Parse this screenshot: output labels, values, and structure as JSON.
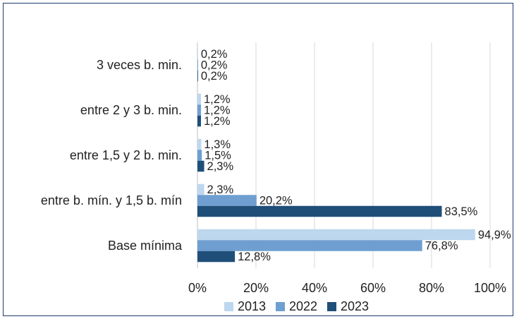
{
  "chart_data": {
    "type": "bar",
    "orientation": "horizontal",
    "categories": [
      "3 veces b. min.",
      "entre 2 y 3 b. min.",
      "entre 1,5 y 2 b. min.",
      "entre b. mín. y 1,5 b. mín",
      "Base mínima"
    ],
    "series": [
      {
        "name": "2013",
        "color": "#bdd7ee",
        "values": [
          0.2,
          1.2,
          1.3,
          2.3,
          94.9
        ],
        "labels": [
          "0,2%",
          "1,2%",
          "1,3%",
          "2,3%",
          "94,9%"
        ]
      },
      {
        "name": "2022",
        "color": "#6f9fd1",
        "values": [
          0.2,
          1.2,
          1.5,
          20.2,
          76.8
        ],
        "labels": [
          "0,2%",
          "1,2%",
          "1,5%",
          "20,2%",
          "76,8%"
        ]
      },
      {
        "name": "2023",
        "color": "#1f4e79",
        "values": [
          0.2,
          1.2,
          2.3,
          83.5,
          12.8
        ],
        "labels": [
          "0,2%",
          "1,2%",
          "2,3%",
          "83,5%",
          "12,8%"
        ]
      }
    ],
    "xlim": [
      0,
      100
    ],
    "xticks": [
      0,
      20,
      40,
      60,
      80,
      100
    ],
    "xtick_labels": [
      "0%",
      "20%",
      "40%",
      "60%",
      "80%",
      "100%"
    ],
    "grid": true,
    "legend": "bottom",
    "title": "",
    "xlabel": "",
    "ylabel": ""
  }
}
